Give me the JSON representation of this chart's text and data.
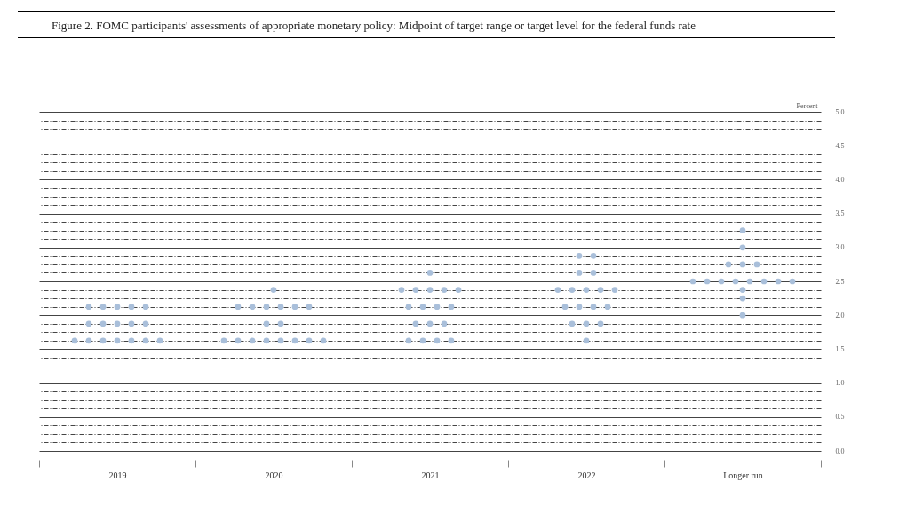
{
  "chart_data": {
    "type": "scatter",
    "title": "Figure 2.  FOMC participants' assessments of appropriate monetary policy: Midpoint of target range or target level for the federal funds rate",
    "ylabel": "Percent",
    "categories": [
      "2019",
      "2020",
      "2021",
      "2022",
      "Longer run"
    ],
    "series": [
      {
        "color": "#a9bfda",
        "values": [
          2.125,
          2.375,
          2.625,
          2.875,
          3.25
        ]
      },
      {
        "color": "#a9bfda",
        "values": [
          2.125,
          2.125,
          2.375,
          2.875,
          3.0
        ]
      },
      {
        "color": "#a9bfda",
        "values": [
          2.125,
          2.125,
          2.375,
          2.625,
          2.75
        ]
      },
      {
        "color": "#a9bfda",
        "values": [
          2.125,
          2.125,
          2.375,
          2.625,
          2.75
        ]
      },
      {
        "color": "#a9bfda",
        "values": [
          2.125,
          2.125,
          2.375,
          2.375,
          2.75
        ]
      },
      {
        "color": "#a9bfda",
        "values": [
          1.875,
          2.125,
          2.375,
          2.375,
          2.5
        ]
      },
      {
        "color": "#a9bfda",
        "values": [
          1.875,
          2.125,
          2.125,
          2.375,
          2.5
        ]
      },
      {
        "color": "#a9bfda",
        "values": [
          1.875,
          1.875,
          2.125,
          2.375,
          2.5
        ]
      },
      {
        "color": "#a9bfda",
        "values": [
          1.875,
          1.875,
          2.125,
          2.375,
          2.5
        ]
      },
      {
        "color": "#a9bfda",
        "values": [
          1.875,
          1.625,
          2.125,
          2.125,
          2.5
        ]
      },
      {
        "color": "#a9bfda",
        "values": [
          1.625,
          1.625,
          1.875,
          2.125,
          2.5
        ]
      },
      {
        "color": "#a9bfda",
        "values": [
          1.625,
          1.625,
          1.875,
          2.125,
          2.5
        ]
      },
      {
        "color": "#a9bfda",
        "values": [
          1.625,
          1.625,
          1.875,
          2.125,
          2.5
        ]
      },
      {
        "color": "#a9bfda",
        "values": [
          1.625,
          1.625,
          1.625,
          1.875,
          2.375
        ]
      },
      {
        "color": "#a9bfda",
        "values": [
          1.625,
          1.625,
          1.625,
          1.875,
          2.25
        ]
      },
      {
        "color": "#a9bfda",
        "values": [
          1.625,
          1.625,
          1.625,
          1.875,
          2.0
        ]
      },
      {
        "color": "#a9bfda",
        "values": [
          1.625,
          1.625,
          1.625,
          1.625,
          null
        ]
      }
    ],
    "ylim": [
      0,
      5
    ],
    "yticks": [
      {
        "value": 0,
        "label": "0.0"
      },
      {
        "value": 0.125,
        "label": null
      },
      {
        "value": 0.25,
        "label": null
      },
      {
        "value": 0.375,
        "label": null
      },
      {
        "value": 0.5,
        "label": "0.5"
      },
      {
        "value": 0.625,
        "label": null
      },
      {
        "value": 0.75,
        "label": null
      },
      {
        "value": 0.875,
        "label": null
      },
      {
        "value": 1,
        "label": "1.0"
      },
      {
        "value": 1.125,
        "label": null
      },
      {
        "value": 1.25,
        "label": null
      },
      {
        "value": 1.375,
        "label": null
      },
      {
        "value": 1.5,
        "label": "1.5"
      },
      {
        "value": 1.625,
        "label": null
      },
      {
        "value": 1.75,
        "label": null
      },
      {
        "value": 1.875,
        "label": null
      },
      {
        "value": 2,
        "label": "2.0"
      },
      {
        "value": 2.125,
        "label": null
      },
      {
        "value": 2.25,
        "label": null
      },
      {
        "value": 2.375,
        "label": null
      },
      {
        "value": 2.5,
        "label": "2.5"
      },
      {
        "value": 2.625,
        "label": null
      },
      {
        "value": 2.75,
        "label": null
      },
      {
        "value": 2.875,
        "label": null
      },
      {
        "value": 3,
        "label": "3.0"
      },
      {
        "value": 3.125,
        "label": null
      },
      {
        "value": 3.25,
        "label": null
      },
      {
        "value": 3.375,
        "label": null
      },
      {
        "value": 3.5,
        "label": "3.5"
      },
      {
        "value": 3.625,
        "label": null
      },
      {
        "value": 3.75,
        "label": null
      },
      {
        "value": 3.875,
        "label": null
      },
      {
        "value": 4,
        "label": "4.0"
      },
      {
        "value": 4.125,
        "label": null
      },
      {
        "value": 4.25,
        "label": null
      },
      {
        "value": 4.375,
        "label": null
      },
      {
        "value": 4.5,
        "label": "4.5"
      },
      {
        "value": 4.625,
        "label": null
      },
      {
        "value": 4.75,
        "label": null
      },
      {
        "value": 4.875,
        "label": null
      },
      {
        "value": 5,
        "label": "5.0"
      }
    ],
    "grid": "y",
    "marker": "circle"
  }
}
